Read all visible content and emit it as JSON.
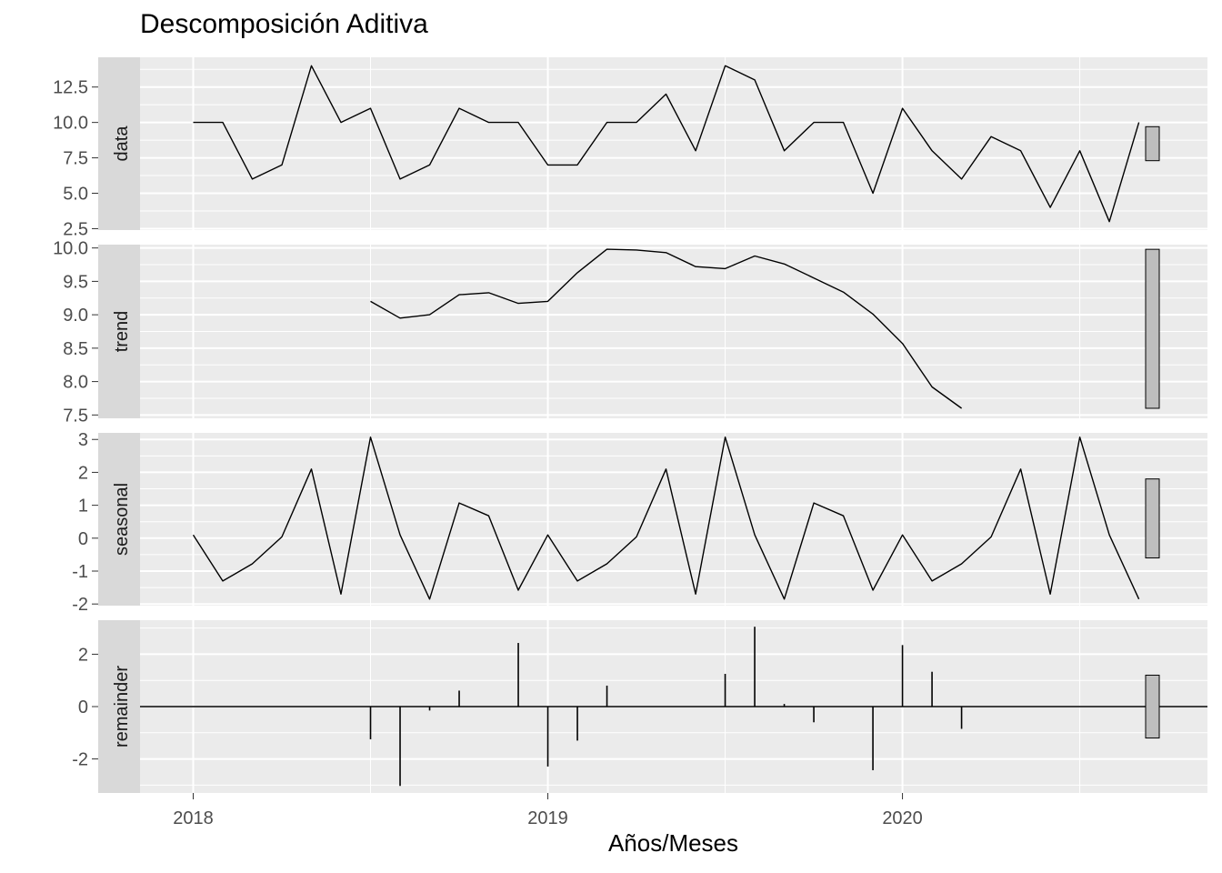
{
  "chart_data": {
    "type": "line",
    "title": "Descomposición Aditiva",
    "xlabel": "Años/Meses",
    "x_ticks": [
      2018,
      2019,
      2020
    ],
    "xlim": [
      2017.85,
      2020.86
    ],
    "start": 2018.0,
    "frequency": 12,
    "panels": [
      {
        "name": "data",
        "type": "line",
        "ylim": [
          2.4,
          14.6
        ],
        "y_ticks": [
          2.5,
          5.0,
          7.5,
          10.0,
          12.5
        ],
        "y_tick_labels": [
          "2.5",
          "5.0",
          "7.5",
          "10.0",
          "12.5"
        ],
        "values": [
          10,
          10,
          6,
          7,
          14,
          10,
          11,
          6,
          7,
          11,
          10,
          10,
          7,
          7,
          10,
          10,
          12,
          8,
          14,
          13,
          8,
          10,
          10,
          5,
          11,
          8,
          6,
          9,
          8,
          4,
          8,
          3,
          10
        ],
        "range_bar": [
          7.3,
          9.7
        ]
      },
      {
        "name": "trend",
        "type": "line",
        "ylim": [
          7.45,
          10.05
        ],
        "y_ticks": [
          7.5,
          8.0,
          8.5,
          9.0,
          9.5,
          10.0
        ],
        "y_tick_labels": [
          "7.5",
          "8.0",
          "8.5",
          "9.0",
          "9.5",
          "10.0"
        ],
        "values": [
          null,
          null,
          null,
          null,
          null,
          null,
          9.2,
          8.95,
          9.0,
          9.3,
          9.33,
          9.17,
          9.2,
          9.63,
          9.98,
          9.97,
          9.93,
          9.72,
          9.69,
          9.88,
          9.76,
          9.55,
          9.34,
          9.01,
          8.57,
          7.92,
          7.6,
          null,
          null,
          null,
          null,
          null,
          null
        ],
        "range_bar": [
          7.6,
          9.98
        ]
      },
      {
        "name": "seasonal",
        "type": "line",
        "ylim": [
          -2.05,
          3.2
        ],
        "y_ticks": [
          -2,
          -1,
          0,
          1,
          2,
          3
        ],
        "y_tick_labels": [
          "-2",
          "-1",
          "0",
          "1",
          "2",
          "3"
        ],
        "values": [
          0.1,
          -1.3,
          -0.78,
          0.04,
          2.1,
          -1.7,
          3.07,
          0.1,
          -1.85,
          1.07,
          0.68,
          -1.58,
          0.1,
          -1.3,
          -0.78,
          0.04,
          2.1,
          -1.7,
          3.07,
          0.1,
          -1.85,
          1.07,
          0.68,
          -1.58,
          0.1,
          -1.3,
          -0.78,
          0.04,
          2.1,
          -1.7,
          3.07,
          0.1,
          -1.85
        ],
        "range_bar": [
          -0.6,
          1.8
        ]
      },
      {
        "name": "remainder",
        "type": "bar",
        "ylim": [
          -3.3,
          3.3
        ],
        "y_ticks": [
          -2,
          0,
          2
        ],
        "y_tick_labels": [
          "-2",
          "0",
          "2"
        ],
        "values": [
          null,
          null,
          null,
          null,
          null,
          null,
          -1.25,
          -3.03,
          -0.15,
          0.61,
          null,
          2.43,
          -2.29,
          -1.3,
          0.8,
          null,
          null,
          null,
          1.25,
          3.05,
          0.1,
          -0.6,
          null,
          -2.43,
          2.35,
          1.33,
          -0.85,
          null,
          null,
          null,
          null,
          null,
          null
        ],
        "range_bar": [
          -1.2,
          1.2
        ]
      }
    ]
  }
}
